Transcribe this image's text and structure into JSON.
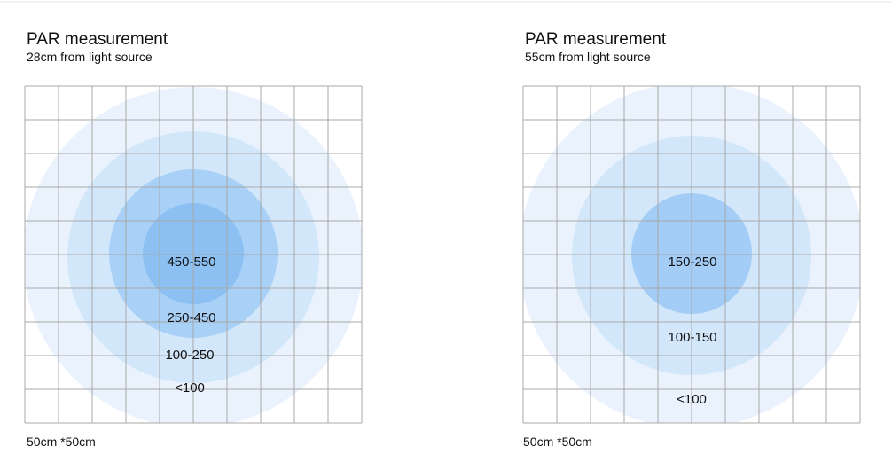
{
  "panels": [
    {
      "title": "PAR measurement",
      "subtitle": "28cm from light source",
      "zones": [
        "450-550",
        "250-450",
        "100-250",
        "<100"
      ],
      "footer": "50cm *50cm"
    },
    {
      "title": "PAR measurement",
      "subtitle": "55cm from light source",
      "zones": [
        "150-250",
        "100-150",
        "<100"
      ],
      "footer": "50cm *50cm"
    }
  ]
}
